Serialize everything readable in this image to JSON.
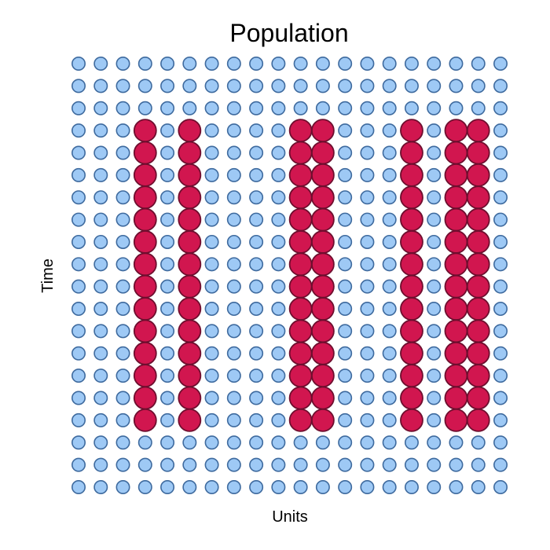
{
  "chart_data": {
    "type": "scatter",
    "title": "Population",
    "xlabel": "Units",
    "ylabel": "Time",
    "grid": false,
    "legend": "none",
    "n_units": 20,
    "n_times": 20,
    "units": [
      1,
      2,
      3,
      4,
      5,
      6,
      7,
      8,
      9,
      10,
      11,
      12,
      13,
      14,
      15,
      16,
      17,
      18,
      19,
      20
    ],
    "times": [
      1,
      2,
      3,
      4,
      5,
      6,
      7,
      8,
      9,
      10,
      11,
      12,
      13,
      14,
      15,
      16,
      17,
      18,
      19,
      20
    ],
    "treated_units": [
      4,
      6,
      11,
      12,
      16,
      18,
      19
    ],
    "treated_time_range": [
      4,
      17
    ],
    "series": [
      {
        "status": "untreated",
        "fill": "#9EC9F5",
        "stroke": "#3E6A9E"
      },
      {
        "status": "treated",
        "fill": "#D1164F",
        "stroke": "#6E0E2E"
      }
    ]
  }
}
